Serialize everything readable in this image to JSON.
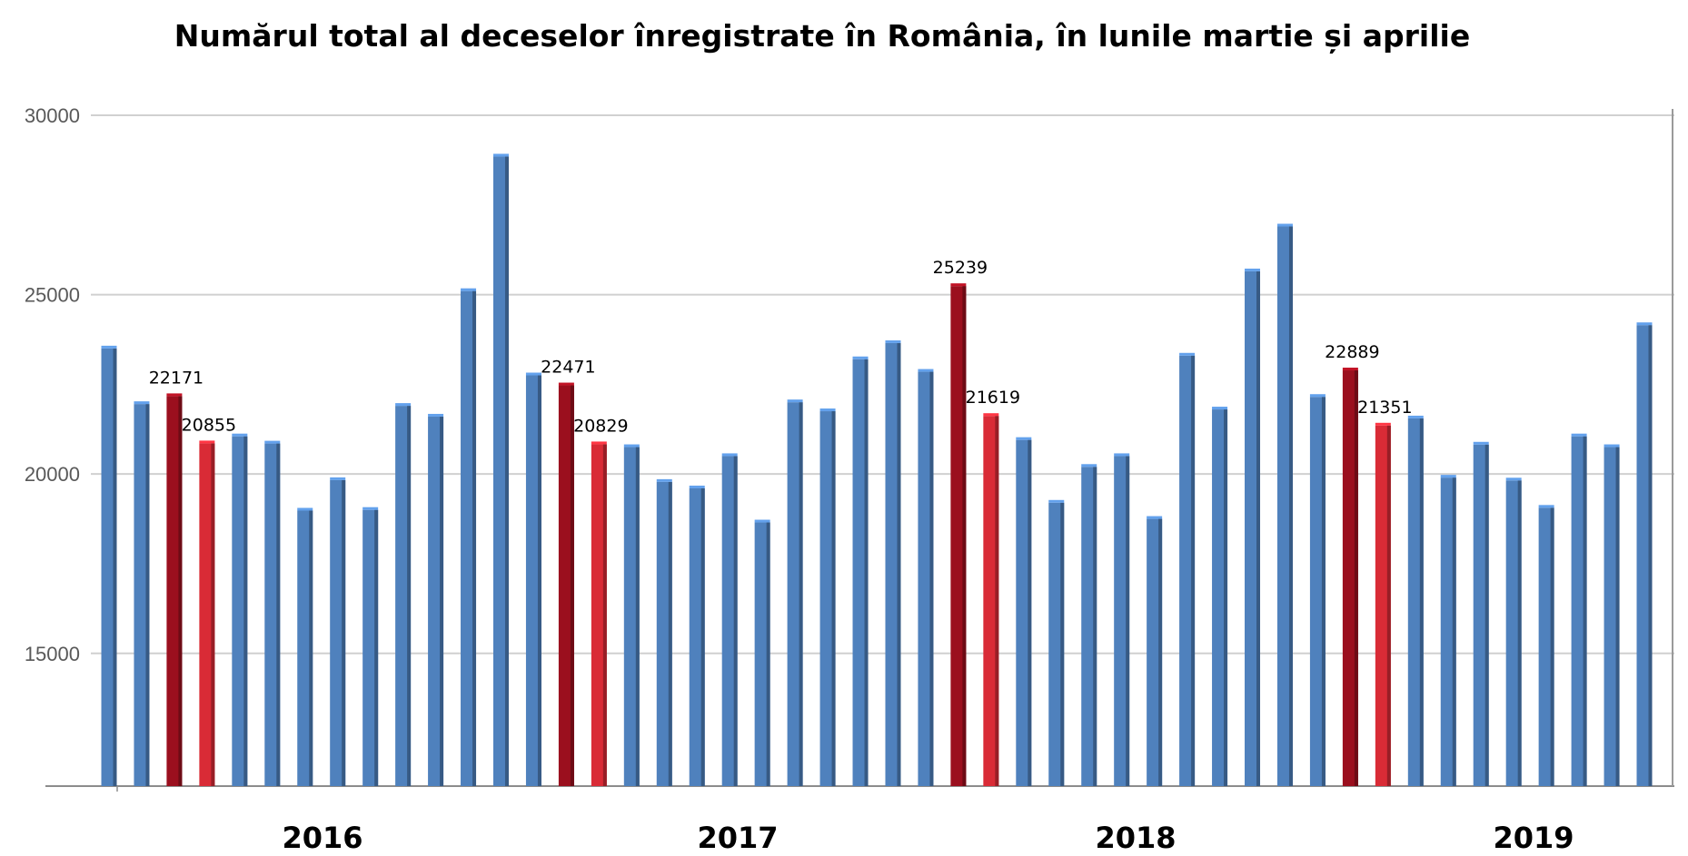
{
  "title": "Numărul total al deceselor înregistrate în România, în lunile martie și aprilie",
  "chart_data": {
    "type": "bar",
    "title": "Numărul total al deceselor înregistrate în România, în lunile martie și aprilie",
    "xlabel": "",
    "ylabel": "",
    "ylim": [
      11300,
      30000
    ],
    "yticks": [
      15000,
      20000,
      25000,
      30000
    ],
    "grid": true,
    "groups": [
      "2016",
      "2017",
      "2018",
      "2019"
    ],
    "colors": {
      "default": "#4f81bd",
      "march": "#9b0f1e",
      "april": "#d92b36"
    },
    "values": [
      23500,
      21950,
      22171,
      20855,
      21050,
      20850,
      18980,
      19830,
      19000,
      21900,
      21600,
      25100,
      28850,
      22750,
      22471,
      20829,
      20750,
      19780,
      19600,
      20500,
      18650,
      22000,
      21750,
      23200,
      23650,
      22850,
      25239,
      21619,
      20950,
      19200,
      20200,
      20500,
      18750,
      23300,
      21800,
      25650,
      26900,
      22150,
      22889,
      21351,
      21550,
      19900,
      20820,
      19820,
      19060,
      21050,
      20750,
      24150
    ],
    "highlights": [
      {
        "index": 2,
        "kind": "march",
        "label": "22171"
      },
      {
        "index": 3,
        "kind": "april",
        "label": "20855"
      },
      {
        "index": 14,
        "kind": "march",
        "label": "22471"
      },
      {
        "index": 15,
        "kind": "april",
        "label": "20829"
      },
      {
        "index": 26,
        "kind": "march",
        "label": "25239"
      },
      {
        "index": 27,
        "kind": "april",
        "label": "21619"
      },
      {
        "index": 38,
        "kind": "march",
        "label": "22889"
      },
      {
        "index": 39,
        "kind": "april",
        "label": "21351"
      }
    ]
  }
}
